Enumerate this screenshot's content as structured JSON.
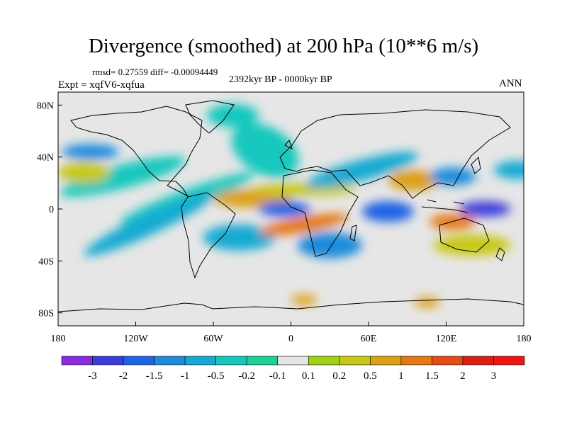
{
  "chart_data": {
    "type": "heatmap",
    "title": "Divergence (smoothed) at 200 hPa (10**6 m/s)",
    "stats_label": "rmsd= 0.27559 diff= -0.00094449",
    "experiment_label": "Expt = xqfV6-xqfua",
    "period_label": "2392kyr BP - 0000kyr BP",
    "season_label": "ANN",
    "projection": "cylindrical equidistant",
    "xlim": [
      -180,
      180
    ],
    "ylim": [
      -90,
      90
    ],
    "x_ticks": [
      {
        "value": -180,
        "label": "180"
      },
      {
        "value": -120,
        "label": "120W"
      },
      {
        "value": -60,
        "label": "60W"
      },
      {
        "value": 0,
        "label": "0"
      },
      {
        "value": 60,
        "label": "60E"
      },
      {
        "value": 120,
        "label": "120E"
      },
      {
        "value": 180,
        "label": "180"
      }
    ],
    "y_ticks": [
      {
        "value": 80,
        "label": "80N"
      },
      {
        "value": 40,
        "label": "40N"
      },
      {
        "value": 0,
        "label": "0"
      },
      {
        "value": -40,
        "label": "40S"
      },
      {
        "value": -80,
        "label": "80S"
      }
    ],
    "colorbar": {
      "labels": [
        "-3",
        "-2",
        "-1.5",
        "-1",
        "-0.5",
        "-0.2",
        "-0.1",
        "0.1",
        "0.2",
        "0.5",
        "1",
        "1.5",
        "2",
        "3"
      ],
      "colors": [
        "#8a2be2",
        "#3c3cdc",
        "#1e64e6",
        "#1e8cdc",
        "#14aad2",
        "#14c8be",
        "#1ed296",
        "#e6e6e6",
        "#a0d214",
        "#c8c814",
        "#dca014",
        "#e67814",
        "#e64b14",
        "#dc1e14",
        "#f01414"
      ]
    },
    "regions": [
      {
        "sign": "neg",
        "level": 5,
        "lon": -130,
        "lat": 25,
        "dlon": 50,
        "dlat": 9,
        "rot": -15
      },
      {
        "sign": "neg",
        "level": 3,
        "lon": -155,
        "lat": 44,
        "dlon": 22,
        "dlat": 6,
        "rot": 0
      },
      {
        "sign": "pos",
        "level": 9,
        "lon": -160,
        "lat": 28,
        "dlon": 20,
        "dlat": 8,
        "rot": 0
      },
      {
        "sign": "neg",
        "level": 5,
        "lon": -80,
        "lat": 8,
        "dlon": 55,
        "dlat": 7,
        "rot": -20
      },
      {
        "sign": "neg",
        "level": 4,
        "lon": -110,
        "lat": -12,
        "dlon": 55,
        "dlat": 8,
        "rot": -25
      },
      {
        "sign": "neg",
        "level": 4,
        "lon": -40,
        "lat": -22,
        "dlon": 28,
        "dlat": 10,
        "rot": 0
      },
      {
        "sign": "neg",
        "level": 5,
        "lon": -20,
        "lat": 45,
        "dlon": 28,
        "dlat": 18,
        "rot": 30
      },
      {
        "sign": "neg",
        "level": 5,
        "lon": -45,
        "lat": 72,
        "dlon": 20,
        "dlat": 9,
        "rot": 0
      },
      {
        "sign": "pos",
        "level": 10,
        "lon": -30,
        "lat": 8,
        "dlon": 30,
        "dlat": 7,
        "rot": 0
      },
      {
        "sign": "neg",
        "level": 2,
        "lon": -5,
        "lat": 0,
        "dlon": 20,
        "dlat": 6,
        "rot": 0
      },
      {
        "sign": "pos",
        "level": 11,
        "lon": 10,
        "lat": -12,
        "dlon": 35,
        "dlat": 6,
        "rot": -10
      },
      {
        "sign": "pos",
        "level": 9,
        "lon": 10,
        "lat": 15,
        "dlon": 40,
        "dlat": 5,
        "rot": 0
      },
      {
        "sign": "neg",
        "level": 4,
        "lon": 55,
        "lat": 30,
        "dlon": 45,
        "dlat": 8,
        "rot": -15
      },
      {
        "sign": "neg",
        "level": 3,
        "lon": 30,
        "lat": -28,
        "dlon": 25,
        "dlat": 10,
        "rot": 0
      },
      {
        "sign": "neg",
        "level": 2,
        "lon": 75,
        "lat": -2,
        "dlon": 20,
        "dlat": 8,
        "rot": 0
      },
      {
        "sign": "pos",
        "level": 10,
        "lon": 95,
        "lat": 22,
        "dlon": 20,
        "dlat": 8,
        "rot": 0
      },
      {
        "sign": "neg",
        "level": 3,
        "lon": 125,
        "lat": 25,
        "dlon": 18,
        "dlat": 7,
        "rot": 0
      },
      {
        "sign": "neg",
        "level": 1,
        "lon": 150,
        "lat": 0,
        "dlon": 20,
        "dlat": 6,
        "rot": 0
      },
      {
        "sign": "pos",
        "level": 11,
        "lon": 125,
        "lat": -10,
        "dlon": 18,
        "dlat": 6,
        "rot": 0
      },
      {
        "sign": "neg",
        "level": 4,
        "lon": 175,
        "lat": 30,
        "dlon": 18,
        "dlat": 7,
        "rot": 0
      },
      {
        "sign": "pos",
        "level": 9,
        "lon": 140,
        "lat": -28,
        "dlon": 30,
        "dlat": 8,
        "rot": 0
      },
      {
        "sign": "pos",
        "level": 10,
        "lon": 10,
        "lat": -70,
        "dlon": 10,
        "dlat": 4,
        "rot": 0
      },
      {
        "sign": "pos",
        "level": 10,
        "lon": 105,
        "lat": -72,
        "dlon": 10,
        "dlat": 4,
        "rot": 0
      }
    ]
  }
}
